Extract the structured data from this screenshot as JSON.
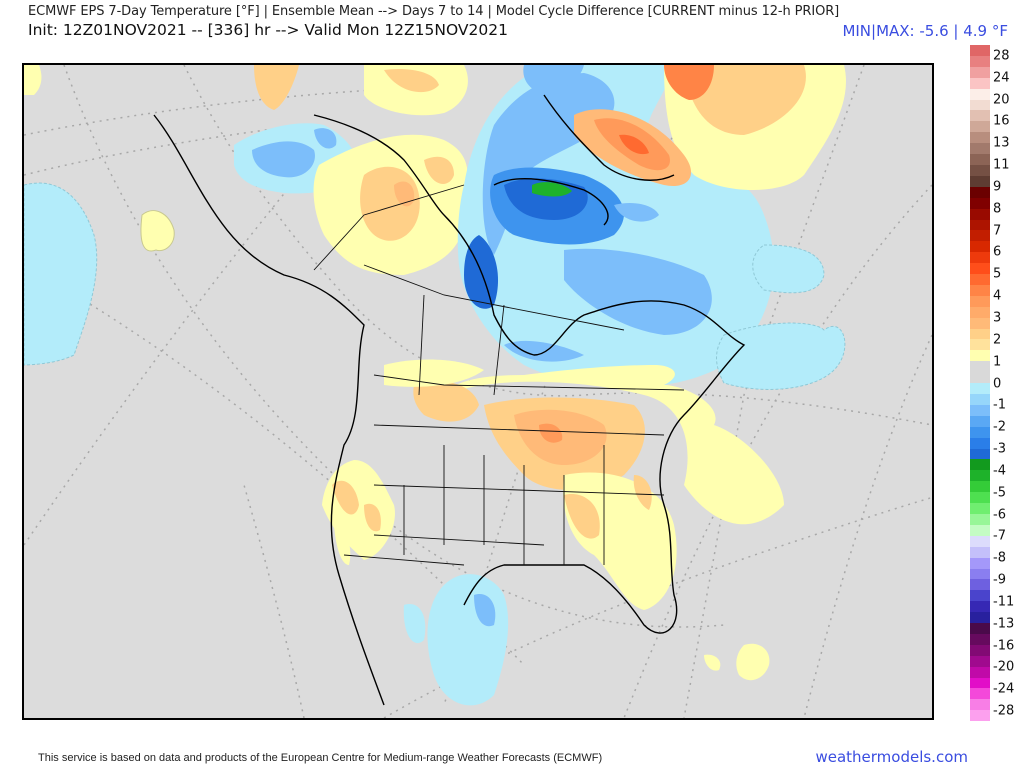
{
  "header": {
    "title": "ECMWF EPS 7-Day Temperature [°F] | Ensemble Mean --> Days 7 to 14 | Model Cycle Difference [CURRENT minus 12-h PRIOR]",
    "subtitle": "Init: 12Z01NOV2021 -- [336] hr --> Valid Mon 12Z15NOV2021",
    "minmax": "MIN|MAX: -5.6 | 4.9 °F"
  },
  "map": {
    "region": "North America",
    "projection": "polar stereographic",
    "variable": "7-day mean temperature difference",
    "units": "°F",
    "features": [
      {
        "area": "Greenland (west/central)",
        "anomaly": "warm",
        "approx_max": 4.9
      },
      {
        "area": "Baffin Island",
        "anomaly": "cold",
        "approx_min": -5.6
      },
      {
        "area": "Hudson Bay / Quebec / Labrador",
        "anomaly": "cold",
        "range": [
          -1,
          -3
        ]
      },
      {
        "area": "Alaska interior",
        "anomaly": "cold",
        "range": [
          -1,
          -3
        ]
      },
      {
        "area": "Yukon / NW Territories",
        "anomaly": "warm",
        "range": [
          1,
          3
        ]
      },
      {
        "area": "US Midwest / Great Lakes / Ohio Valley",
        "anomaly": "warm",
        "range": [
          1,
          3
        ]
      },
      {
        "area": "US Southeast / Florida / W Atlantic",
        "anomaly": "warm",
        "range": [
          1,
          2
        ]
      },
      {
        "area": "California / Nevada / Arizona",
        "anomaly": "warm",
        "range": [
          1,
          2
        ]
      },
      {
        "area": "Texas / Northern Mexico",
        "anomaly": "cold",
        "range": [
          -1,
          -3
        ]
      },
      {
        "area": "North Atlantic east of Newfoundland",
        "anomaly": "cold",
        "range": [
          -1,
          -1
        ]
      },
      {
        "area": "North Pacific west",
        "anomaly": "cold",
        "range": [
          -1,
          -1
        ]
      }
    ]
  },
  "colorbar": {
    "labels": [
      "28",
      "24",
      "20",
      "16",
      "13",
      "11",
      "9",
      "8",
      "7",
      "6",
      "5",
      "4",
      "3",
      "2",
      "1",
      "0",
      "-1",
      "-2",
      "-3",
      "-4",
      "-5",
      "-6",
      "-7",
      "-8",
      "-9",
      "-11",
      "-13",
      "-16",
      "-20",
      "-24",
      "-28"
    ],
    "colors": [
      "#e06666",
      "#e88080",
      "#f0a0a0",
      "#fbc4c4",
      "#fceee8",
      "#f2dcd2",
      "#e2c0b2",
      "#cfa898",
      "#b88e7e",
      "#a27a6c",
      "#8c6456",
      "#755044",
      "#5e3c32",
      "#6b0000",
      "#800000",
      "#990a00",
      "#ad1400",
      "#c21e00",
      "#d82800",
      "#ee3a0c",
      "#ff4e1a",
      "#ff6a30",
      "#ff8446",
      "#ff9a5a",
      "#ffab6a",
      "#ffba78",
      "#ffd088",
      "#ffe29c",
      "#ffffb0",
      "#d9d9d9",
      "#d9d9d9",
      "#b3ecfa",
      "#96d6fa",
      "#7cbefa",
      "#5aa8f4",
      "#3e94ee",
      "#2a7ee8",
      "#1f6ad6",
      "#129a1e",
      "#1eb22a",
      "#34cc38",
      "#4ee050",
      "#70ee70",
      "#98f698",
      "#c4fcc4",
      "#dcdcfc",
      "#c4c0fa",
      "#a498fa",
      "#8a7ef0",
      "#6e60e0",
      "#4a44cc",
      "#3628b4",
      "#28209e",
      "#4a0a4a",
      "#660a5e",
      "#820a74",
      "#a00a8e",
      "#c00aa8",
      "#e20ec8",
      "#f448da",
      "#f87ee6",
      "#fca0ee"
    ]
  },
  "footer": {
    "attribution": "This service is based on data and products of the European Centre for Medium-range Weather Forecasts (ECMWF)",
    "site": "weathermodels.com"
  }
}
